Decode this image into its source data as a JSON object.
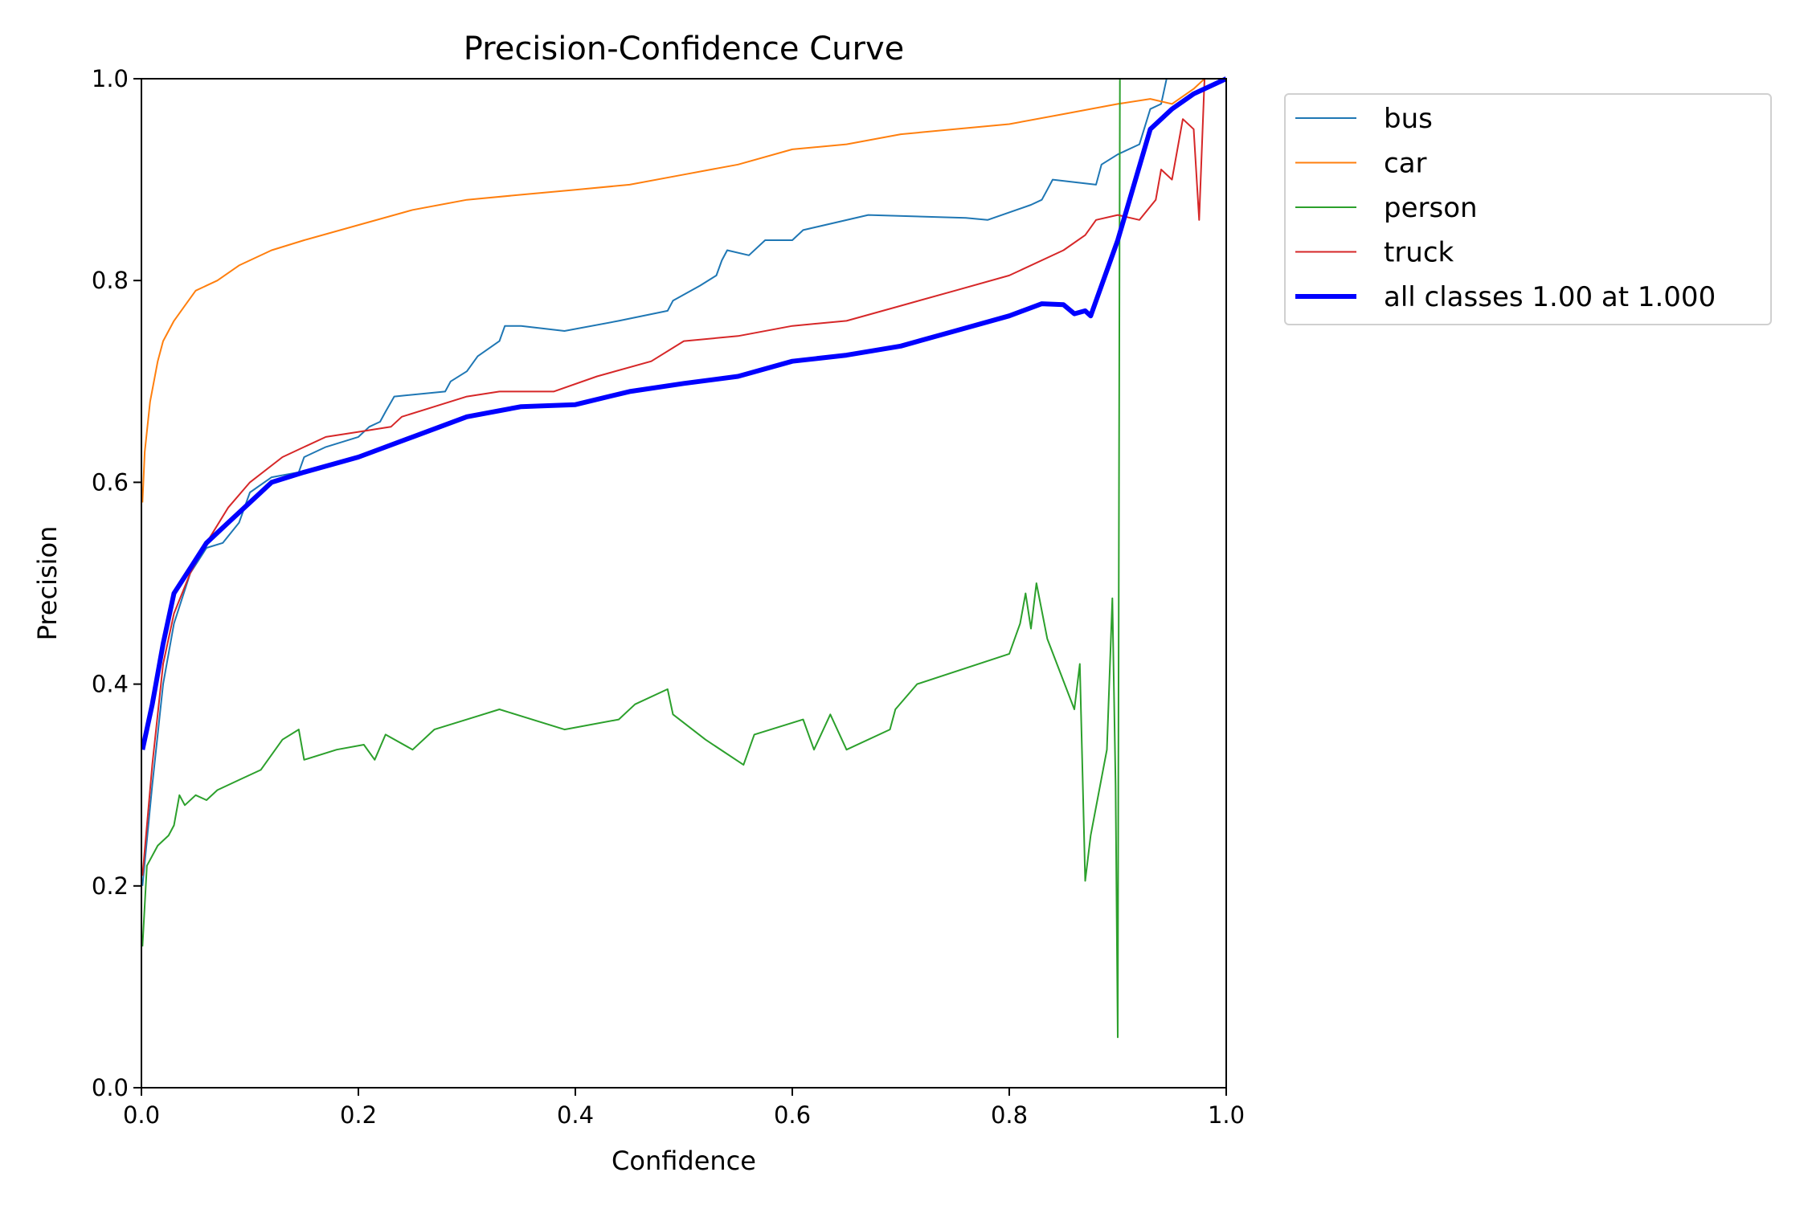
{
  "chart_data": {
    "type": "line",
    "title": "Precision-Confidence Curve",
    "xlabel": "Confidence",
    "ylabel": "Precision",
    "xlim": [
      0,
      1
    ],
    "ylim": [
      0,
      1
    ],
    "xticks": [
      "0.0",
      "0.2",
      "0.4",
      "0.6",
      "0.8",
      "1.0"
    ],
    "yticks": [
      "0.0",
      "0.2",
      "0.4",
      "0.6",
      "0.8",
      "1.0"
    ],
    "grid": false,
    "legend_position": "outside-top-right",
    "series": [
      {
        "name": "bus",
        "color": "#1f77b4",
        "width": 2,
        "x": [
          0.001,
          0.01,
          0.02,
          0.03,
          0.045,
          0.06,
          0.075,
          0.09,
          0.1,
          0.12,
          0.145,
          0.15,
          0.17,
          0.2,
          0.21,
          0.22,
          0.225,
          0.233,
          0.28,
          0.285,
          0.3,
          0.31,
          0.33,
          0.335,
          0.35,
          0.39,
          0.44,
          0.485,
          0.49,
          0.515,
          0.53,
          0.535,
          0.54,
          0.56,
          0.575,
          0.6,
          0.61,
          0.67,
          0.76,
          0.78,
          0.82,
          0.83,
          0.835,
          0.84,
          0.88,
          0.885,
          0.9,
          0.92,
          0.93,
          0.94,
          0.945
        ],
        "y": [
          0.2,
          0.3,
          0.4,
          0.46,
          0.51,
          0.535,
          0.54,
          0.56,
          0.59,
          0.605,
          0.61,
          0.625,
          0.635,
          0.645,
          0.655,
          0.66,
          0.67,
          0.685,
          0.69,
          0.7,
          0.71,
          0.725,
          0.74,
          0.755,
          0.755,
          0.75,
          0.76,
          0.77,
          0.78,
          0.795,
          0.805,
          0.82,
          0.83,
          0.825,
          0.84,
          0.84,
          0.85,
          0.865,
          0.862,
          0.86,
          0.875,
          0.88,
          0.89,
          0.9,
          0.895,
          0.915,
          0.925,
          0.935,
          0.97,
          0.975,
          1.0
        ]
      },
      {
        "name": "car",
        "color": "#ff7f0e",
        "width": 2,
        "x": [
          0.001,
          0.003,
          0.008,
          0.015,
          0.02,
          0.03,
          0.04,
          0.05,
          0.07,
          0.09,
          0.12,
          0.15,
          0.2,
          0.25,
          0.3,
          0.35,
          0.4,
          0.45,
          0.5,
          0.55,
          0.6,
          0.65,
          0.7,
          0.75,
          0.8,
          0.85,
          0.9,
          0.93,
          0.95,
          0.97,
          0.98,
          1.0
        ],
        "y": [
          0.58,
          0.63,
          0.68,
          0.72,
          0.74,
          0.76,
          0.775,
          0.79,
          0.8,
          0.815,
          0.83,
          0.84,
          0.855,
          0.87,
          0.88,
          0.885,
          0.89,
          0.895,
          0.905,
          0.915,
          0.93,
          0.935,
          0.945,
          0.95,
          0.955,
          0.965,
          0.975,
          0.98,
          0.975,
          0.99,
          1.0,
          1.0
        ]
      },
      {
        "name": "person",
        "color": "#2ca02c",
        "width": 2,
        "x": [
          0.001,
          0.005,
          0.015,
          0.025,
          0.03,
          0.035,
          0.04,
          0.05,
          0.06,
          0.07,
          0.09,
          0.11,
          0.13,
          0.145,
          0.15,
          0.18,
          0.205,
          0.215,
          0.225,
          0.25,
          0.27,
          0.3,
          0.33,
          0.39,
          0.44,
          0.455,
          0.485,
          0.49,
          0.52,
          0.555,
          0.565,
          0.61,
          0.62,
          0.635,
          0.65,
          0.69,
          0.695,
          0.715,
          0.8,
          0.81,
          0.815,
          0.82,
          0.825,
          0.835,
          0.86,
          0.865,
          0.87,
          0.875,
          0.89,
          0.895,
          0.898,
          0.9,
          0.902
        ],
        "y": [
          0.14,
          0.22,
          0.24,
          0.25,
          0.26,
          0.29,
          0.28,
          0.29,
          0.285,
          0.295,
          0.305,
          0.315,
          0.345,
          0.355,
          0.325,
          0.335,
          0.34,
          0.325,
          0.35,
          0.335,
          0.355,
          0.365,
          0.375,
          0.355,
          0.365,
          0.38,
          0.395,
          0.37,
          0.345,
          0.32,
          0.35,
          0.365,
          0.335,
          0.37,
          0.335,
          0.355,
          0.375,
          0.4,
          0.43,
          0.46,
          0.49,
          0.455,
          0.5,
          0.445,
          0.375,
          0.42,
          0.205,
          0.25,
          0.335,
          0.485,
          0.3,
          0.05,
          1.0
        ]
      },
      {
        "name": "truck",
        "color": "#d62728",
        "width": 2,
        "x": [
          0.001,
          0.01,
          0.02,
          0.03,
          0.045,
          0.06,
          0.08,
          0.1,
          0.13,
          0.15,
          0.17,
          0.2,
          0.23,
          0.24,
          0.27,
          0.3,
          0.33,
          0.38,
          0.42,
          0.47,
          0.5,
          0.55,
          0.6,
          0.65,
          0.7,
          0.75,
          0.8,
          0.85,
          0.87,
          0.88,
          0.9,
          0.92,
          0.935,
          0.94,
          0.95,
          0.96,
          0.97,
          0.975,
          0.98
        ],
        "y": [
          0.21,
          0.32,
          0.42,
          0.47,
          0.51,
          0.54,
          0.575,
          0.6,
          0.625,
          0.635,
          0.645,
          0.65,
          0.655,
          0.665,
          0.675,
          0.685,
          0.69,
          0.69,
          0.705,
          0.72,
          0.74,
          0.745,
          0.755,
          0.76,
          0.775,
          0.79,
          0.805,
          0.83,
          0.845,
          0.86,
          0.865,
          0.86,
          0.88,
          0.91,
          0.9,
          0.96,
          0.95,
          0.86,
          1.0
        ]
      },
      {
        "name": "all classes 1.00 at 1.000",
        "color": "#0000ff",
        "width": 6,
        "x": [
          0.001,
          0.01,
          0.02,
          0.03,
          0.045,
          0.06,
          0.08,
          0.1,
          0.12,
          0.15,
          0.2,
          0.25,
          0.3,
          0.35,
          0.4,
          0.45,
          0.5,
          0.55,
          0.6,
          0.65,
          0.7,
          0.75,
          0.8,
          0.83,
          0.85,
          0.86,
          0.87,
          0.875,
          0.9,
          0.93,
          0.95,
          0.97,
          1.0
        ],
        "y": [
          0.335,
          0.38,
          0.44,
          0.49,
          0.515,
          0.54,
          0.56,
          0.58,
          0.6,
          0.61,
          0.625,
          0.645,
          0.665,
          0.675,
          0.677,
          0.69,
          0.698,
          0.705,
          0.72,
          0.726,
          0.735,
          0.75,
          0.765,
          0.777,
          0.776,
          0.767,
          0.77,
          0.765,
          0.84,
          0.95,
          0.97,
          0.985,
          1.0
        ]
      }
    ]
  }
}
